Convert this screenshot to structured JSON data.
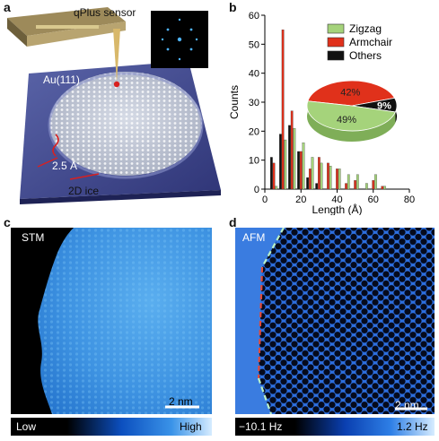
{
  "panel_labels": {
    "a": "a",
    "b": "b",
    "c": "c",
    "d": "d"
  },
  "panel_a": {
    "sensor_label": "qPlus sensor",
    "substrate_label": "Au(111)",
    "height_label": "2.5 Å",
    "ice_label": "2D ice"
  },
  "panel_c": {
    "mode_label": "STM",
    "scale_label": "2 nm",
    "colorbar_low": "Low",
    "colorbar_high": "High"
  },
  "panel_d": {
    "mode_label": "AFM",
    "scale_label": "2 nm",
    "colorbar_low": "−10.1 Hz",
    "colorbar_high": "1.2 Hz"
  },
  "colors": {
    "zigzag": "#a5d37b",
    "armchair": "#e0311b",
    "others": "#111111",
    "stm_blue": "#2d8be0",
    "afm_blue": "#1458d6"
  },
  "chart_data": [
    {
      "type": "bar",
      "xlabel": "Length (Å)",
      "ylabel": "Counts",
      "xlim": [
        0,
        80
      ],
      "ylim": [
        0,
        60
      ],
      "xticks": [
        "0",
        "20",
        "40",
        "60",
        "80"
      ],
      "yticks": [
        "0",
        "10",
        "20",
        "30",
        "40",
        "50",
        "60"
      ],
      "legend": [
        "Zigzag",
        "Armchair",
        "Others"
      ],
      "legend_position": "top-right",
      "x": [
        5,
        10,
        15,
        20,
        25,
        30,
        35,
        40,
        45,
        50,
        55,
        60,
        65
      ],
      "series": [
        {
          "name": "Others",
          "values": [
            11,
            19,
            22,
            13,
            4,
            2,
            0,
            0,
            0,
            0,
            0,
            0,
            0
          ]
        },
        {
          "name": "Armchair",
          "values": [
            9,
            55,
            27,
            13,
            7,
            11,
            9,
            7,
            2,
            3,
            0,
            3,
            1
          ]
        },
        {
          "name": "Zigzag",
          "values": [
            1,
            17,
            21,
            16,
            11,
            9,
            8,
            7,
            5,
            5,
            2,
            5,
            1
          ]
        }
      ]
    },
    {
      "type": "pie",
      "labels": [
        "Zigzag",
        "Armchair",
        "Others"
      ],
      "values": [
        49,
        42,
        9
      ],
      "value_labels": [
        "49%",
        "42%",
        "9%"
      ]
    }
  ]
}
